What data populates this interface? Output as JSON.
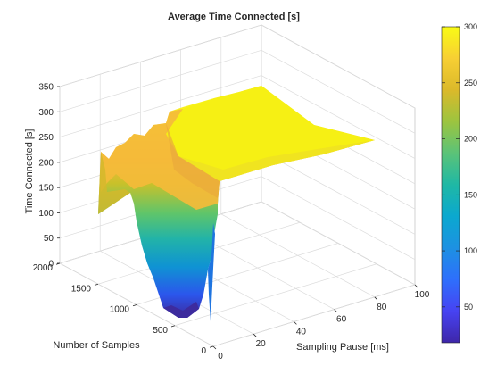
{
  "chart_data": {
    "type": "surface",
    "title": "Average Time Connected [s]",
    "xlabel": "Sampling Pause [ms]",
    "ylabel": "Number of Samples",
    "zlabel": "Time Connected [s]",
    "xlim": [
      0,
      100
    ],
    "ylim": [
      0,
      2000
    ],
    "zlim": [
      0,
      350
    ],
    "x_ticks": [
      "0",
      "20",
      "40",
      "60",
      "80",
      "100"
    ],
    "y_ticks": [
      "0",
      "500",
      "1000",
      "1500",
      "2000"
    ],
    "z_ticks": [
      "0",
      "50",
      "100",
      "150",
      "200",
      "250",
      "300",
      "350"
    ],
    "colorbar": {
      "range": [
        18,
        300
      ],
      "ticks": [
        "50",
        "100",
        "150",
        "200",
        "250",
        "300"
      ],
      "colormap": "parula"
    },
    "grid": true,
    "surface_samples": [
      {
        "x": 2,
        "y": 2000,
        "z": 95
      },
      {
        "x": 2,
        "y": 1800,
        "z": 165
      },
      {
        "x": 2,
        "y": 1600,
        "z": 180
      },
      {
        "x": 2,
        "y": 1400,
        "z": 215
      },
      {
        "x": 2,
        "y": 1200,
        "z": 228
      },
      {
        "x": 2,
        "y": 1000,
        "z": 225
      },
      {
        "x": 2,
        "y": 900,
        "z": 255
      },
      {
        "x": 2,
        "y": 700,
        "z": 262
      },
      {
        "x": 2,
        "y": 500,
        "z": 268
      },
      {
        "x": 2,
        "y": 300,
        "z": 262
      },
      {
        "x": 2,
        "y": 200,
        "z": 275
      },
      {
        "x": 2,
        "y": 100,
        "z": 282
      },
      {
        "x": 2,
        "y": 10,
        "z": 292
      },
      {
        "x": 8,
        "y": 1000,
        "z": 130
      },
      {
        "x": 10,
        "y": 500,
        "z": 40
      },
      {
        "x": 10,
        "y": 300,
        "z": 18
      },
      {
        "x": 10,
        "y": 10,
        "z": 300
      },
      {
        "x": 14,
        "y": 200,
        "z": 230
      },
      {
        "x": 20,
        "y": 700,
        "z": 300
      },
      {
        "x": 30,
        "y": 100,
        "z": 285
      },
      {
        "x": 50,
        "y": 10,
        "z": 295
      },
      {
        "x": 100,
        "y": 2000,
        "z": 300
      },
      {
        "x": 100,
        "y": 10,
        "z": 300
      }
    ]
  }
}
